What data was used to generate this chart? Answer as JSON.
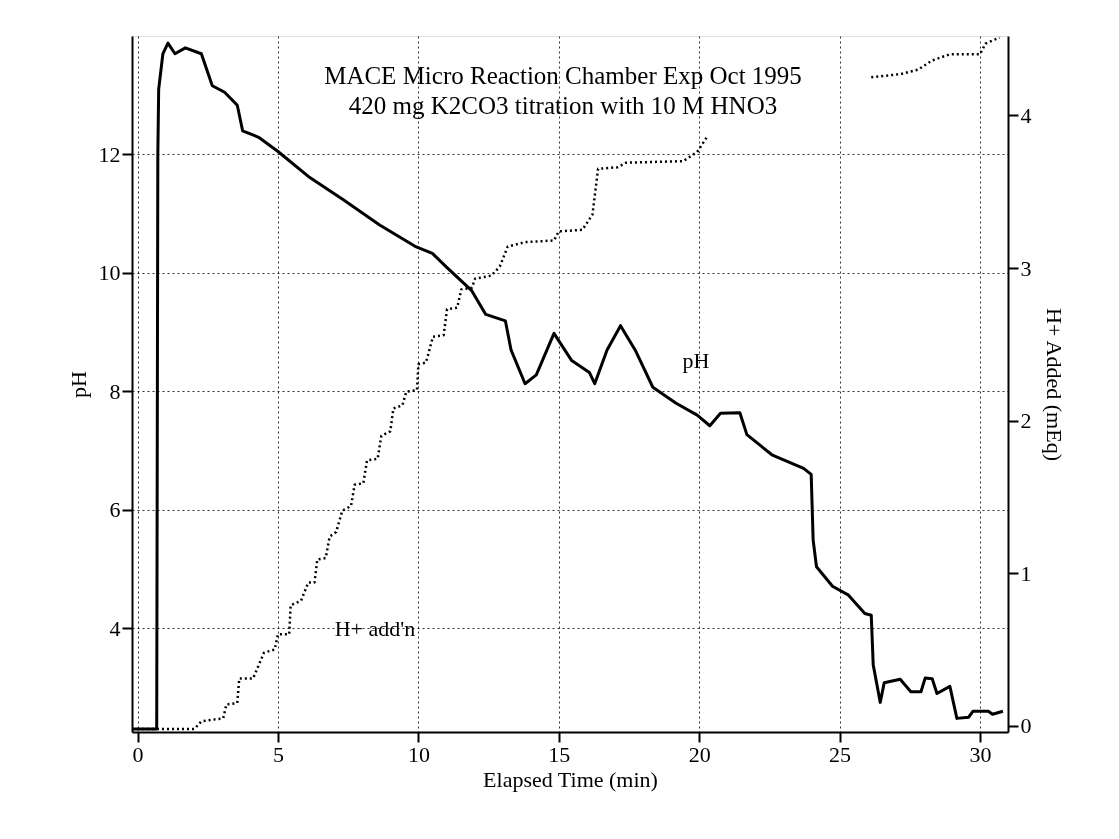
{
  "chart_data": {
    "type": "line",
    "title": "MACE Micro Reaction Chamber Exp    Oct 1995",
    "subtitle": "420 mg K2CO3 titration with 10 M HNO3",
    "xlabel": "Elapsed Time (min)",
    "ylabel": "pH",
    "y2label": "H+ Added (mEq)",
    "xlim": [
      -0.2,
      31.0
    ],
    "xticks": [
      0,
      5,
      10,
      15,
      20,
      25,
      30
    ],
    "ylim": [
      2.25,
      14.0
    ],
    "yticks": [
      4,
      6,
      8,
      10,
      12
    ],
    "y2lim": [
      -0.04,
      4.52
    ],
    "y2ticks": [
      0,
      1,
      2,
      3,
      4
    ],
    "grid": true,
    "legend": false,
    "series": [
      {
        "name": "pH",
        "color": "#000000",
        "line_style": "solid",
        "x": [
          -0.2,
          0.6,
          0.68,
          0.72,
          0.75,
          0.9,
          1.08,
          1.33,
          1.7,
          2.27,
          2.66,
          3.1,
          3.55,
          3.74,
          4.31,
          5.0,
          6.08,
          7.34,
          8.62,
          9.88,
          10.5,
          11.02,
          11.9,
          12.4,
          13.1,
          13.3,
          13.8,
          14.2,
          14.83,
          15.46,
          16.09,
          16.28,
          16.72,
          17.2,
          17.72,
          18.35,
          19.18,
          19.93,
          20.38,
          20.76,
          21.45,
          21.7,
          22.59,
          23.72,
          23.99,
          24.06,
          24.18,
          24.75,
          25.32,
          25.9,
          26.13,
          26.2,
          26.45,
          26.59,
          27.16,
          27.54,
          27.9,
          28.05,
          28.3,
          28.47,
          28.93,
          29.18,
          29.6,
          29.75,
          30.3,
          30.45,
          30.82
        ],
        "values": [
          2.3,
          2.3,
          2.3,
          12.0,
          13.1,
          13.7,
          13.88,
          13.7,
          13.8,
          13.7,
          13.16,
          13.05,
          12.83,
          12.4,
          12.29,
          12.05,
          11.63,
          11.23,
          10.81,
          10.45,
          10.33,
          10.09,
          9.7,
          9.3,
          9.19,
          8.7,
          8.13,
          8.28,
          8.98,
          8.52,
          8.32,
          8.13,
          8.7,
          9.11,
          8.7,
          8.07,
          7.8,
          7.6,
          7.42,
          7.63,
          7.64,
          7.27,
          6.93,
          6.7,
          6.6,
          5.49,
          5.04,
          4.71,
          4.56,
          4.25,
          4.22,
          3.38,
          2.75,
          3.08,
          3.14,
          2.93,
          2.93,
          3.16,
          3.15,
          2.9,
          3.02,
          2.48,
          2.5,
          2.6,
          2.6,
          2.55,
          2.6
        ]
      },
      {
        "name": "H+ add'n",
        "color": "#000000",
        "line_style": "dotted",
        "axis": "y2",
        "x": [
          -0.2,
          2.02,
          2.27,
          3.05,
          3.16,
          3.55,
          3.62,
          4.11,
          4.5,
          4.88,
          5.0,
          5.4,
          5.45,
          5.82,
          6.08,
          6.3,
          6.4,
          6.7,
          6.84,
          7.07,
          7.29,
          7.6,
          7.73,
          8.04,
          8.17,
          8.55,
          8.68,
          9.0,
          9.11,
          9.43,
          9.57,
          9.95,
          10.0,
          10.27,
          10.52,
          10.9,
          11.02,
          11.38,
          11.53,
          11.9,
          12.02,
          12.6,
          12.9,
          13.18,
          13.8,
          14.83,
          15.0,
          15.84,
          16.2,
          16.4,
          17.1,
          17.4,
          19.43,
          19.93,
          20.32,
          20.4,
          26.13,
          27.16,
          27.8,
          28.3,
          28.93,
          30.0,
          30.2,
          30.7
        ],
        "values": [
          -0.02,
          -0.02,
          0.03,
          0.05,
          0.14,
          0.15,
          0.31,
          0.31,
          0.48,
          0.5,
          0.6,
          0.6,
          0.79,
          0.82,
          0.94,
          0.94,
          1.09,
          1.1,
          1.24,
          1.27,
          1.41,
          1.44,
          1.58,
          1.59,
          1.74,
          1.75,
          1.9,
          1.93,
          2.08,
          2.1,
          2.19,
          2.2,
          2.37,
          2.38,
          2.55,
          2.56,
          2.73,
          2.74,
          2.86,
          2.87,
          2.93,
          2.95,
          3.01,
          3.14,
          3.17,
          3.18,
          3.24,
          3.25,
          3.35,
          3.65,
          3.66,
          3.69,
          3.7,
          3.76,
          3.87,
          null,
          4.25,
          4.27,
          4.3,
          4.36,
          4.4,
          4.4,
          4.47,
          4.51
        ]
      }
    ]
  }
}
